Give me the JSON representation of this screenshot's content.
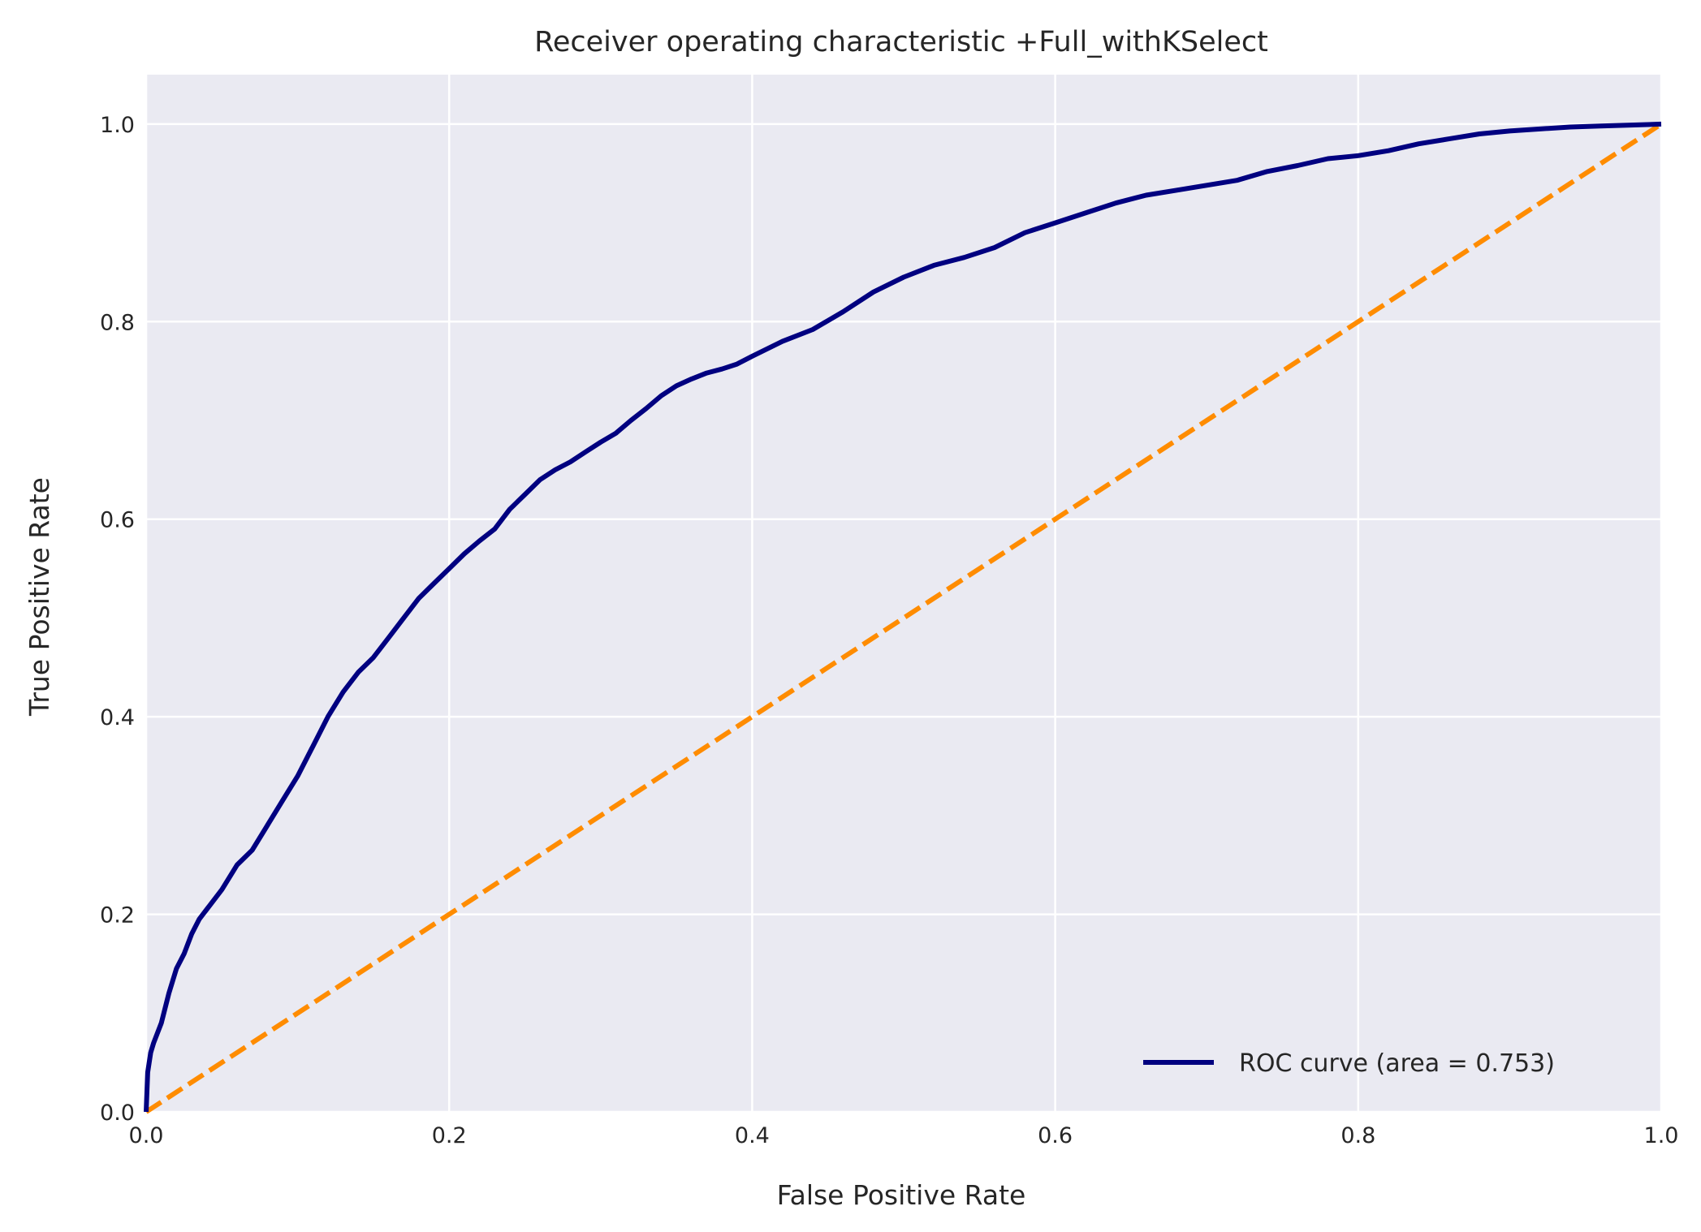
{
  "chart_data": {
    "type": "line",
    "title": "Receiver operating characteristic +Full_withKSelect",
    "xlabel": "False Positive Rate",
    "ylabel": "True Positive Rate",
    "xlim": [
      0.0,
      1.0
    ],
    "ylim": [
      0.0,
      1.05
    ],
    "xticks": [
      "0.0",
      "0.2",
      "0.4",
      "0.6",
      "0.8",
      "1.0"
    ],
    "yticks": [
      "0.0",
      "0.2",
      "0.4",
      "0.6",
      "0.8",
      "1.0"
    ],
    "grid": true,
    "legend_position": "lower-right",
    "colors": {
      "background": "#eaeaf2",
      "grid": "#ffffff",
      "roc": "#000080",
      "diagonal": "#ff8c00"
    },
    "series": [
      {
        "name": "ROC curve (area = 0.753)",
        "style": "solid",
        "color": "#000080",
        "x": [
          0.0,
          0.001,
          0.003,
          0.005,
          0.01,
          0.015,
          0.02,
          0.025,
          0.03,
          0.035,
          0.04,
          0.05,
          0.06,
          0.07,
          0.08,
          0.09,
          0.1,
          0.11,
          0.12,
          0.13,
          0.14,
          0.15,
          0.16,
          0.17,
          0.18,
          0.19,
          0.2,
          0.21,
          0.22,
          0.23,
          0.24,
          0.25,
          0.26,
          0.27,
          0.28,
          0.29,
          0.3,
          0.31,
          0.32,
          0.33,
          0.34,
          0.35,
          0.36,
          0.37,
          0.38,
          0.39,
          0.4,
          0.42,
          0.44,
          0.46,
          0.48,
          0.5,
          0.52,
          0.54,
          0.56,
          0.58,
          0.6,
          0.62,
          0.64,
          0.66,
          0.68,
          0.7,
          0.72,
          0.74,
          0.76,
          0.78,
          0.8,
          0.82,
          0.84,
          0.86,
          0.88,
          0.9,
          0.92,
          0.94,
          0.96,
          0.98,
          1.0
        ],
        "y": [
          0.0,
          0.04,
          0.06,
          0.07,
          0.09,
          0.12,
          0.145,
          0.16,
          0.18,
          0.195,
          0.205,
          0.225,
          0.25,
          0.265,
          0.29,
          0.315,
          0.34,
          0.37,
          0.4,
          0.425,
          0.445,
          0.46,
          0.48,
          0.5,
          0.52,
          0.535,
          0.55,
          0.565,
          0.578,
          0.59,
          0.61,
          0.625,
          0.64,
          0.65,
          0.658,
          0.668,
          0.678,
          0.687,
          0.7,
          0.712,
          0.725,
          0.735,
          0.742,
          0.748,
          0.752,
          0.757,
          0.765,
          0.78,
          0.792,
          0.81,
          0.83,
          0.845,
          0.857,
          0.865,
          0.875,
          0.89,
          0.9,
          0.91,
          0.92,
          0.928,
          0.933,
          0.938,
          0.943,
          0.952,
          0.958,
          0.965,
          0.968,
          0.973,
          0.98,
          0.985,
          0.99,
          0.993,
          0.995,
          0.997,
          0.998,
          0.999,
          1.0
        ]
      },
      {
        "name": "",
        "style": "dashed",
        "color": "#ff8c00",
        "x": [
          0.0,
          1.0
        ],
        "y": [
          0.0,
          1.0
        ]
      }
    ]
  }
}
